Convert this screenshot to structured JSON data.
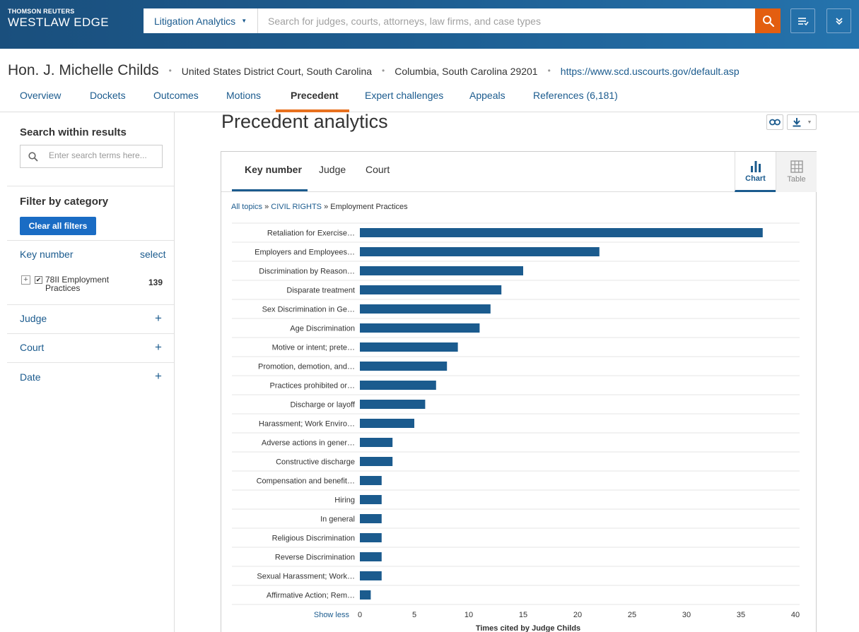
{
  "header": {
    "brand_top": "THOMSON REUTERS",
    "brand_main": "WESTLAW EDGE",
    "search_scope": "Litigation Analytics",
    "search_placeholder": "Search for judges, courts, attorneys, law firms, and case types",
    "icons": [
      "search-icon",
      "list-icon",
      "chevron-down-icon"
    ]
  },
  "judge": {
    "name": "Hon. J. Michelle Childs",
    "court": "United States District Court, South Carolina",
    "location": "Columbia, South Carolina 29201",
    "url": "https://www.scd.uscourts.gov/default.asp",
    "separator": "•"
  },
  "tabs": [
    {
      "label": "Overview"
    },
    {
      "label": "Dockets"
    },
    {
      "label": "Outcomes"
    },
    {
      "label": "Motions"
    },
    {
      "label": "Precedent",
      "active": true
    },
    {
      "label": "Expert challenges"
    },
    {
      "label": "Appeals"
    },
    {
      "label": "References (6,181)"
    }
  ],
  "sidebar": {
    "search_heading": "Search within results",
    "search_placeholder": "Enter search terms here...",
    "filter_heading": "Filter by category",
    "clear_label": "Clear all filters",
    "key_number_label": "Key number",
    "select_label": "select",
    "facet_item": {
      "label": "78II Employment Practices",
      "count": "139",
      "checked": true
    },
    "facets": [
      {
        "label": "Judge"
      },
      {
        "label": "Court"
      },
      {
        "label": "Date"
      }
    ]
  },
  "main": {
    "title": "Precedent analytics",
    "card_tabs": [
      {
        "label": "Key number",
        "active": true
      },
      {
        "label": "Judge"
      },
      {
        "label": "Court"
      }
    ],
    "view_toggles": [
      {
        "label": "Chart",
        "active": true
      },
      {
        "label": "Table"
      }
    ],
    "breadcrumb": {
      "all_topics": "All topics",
      "sep": "»",
      "civil_rights": "CIVIL RIGHTS",
      "current": "Employment Practices"
    },
    "show_less": "Show less"
  },
  "colors": {
    "accent": "#e35e10",
    "bar": "#1b5b8e",
    "link": "#1b5b8e",
    "tab_underline": "#e8711f"
  },
  "chart_data": {
    "type": "bar",
    "orientation": "horizontal",
    "categories": [
      "Retaliation for Exercise…",
      "Employers and Employees…",
      "Discrimination by Reason…",
      "Disparate treatment",
      "Sex Discrimination in Ge…",
      "Age Discrimination",
      "Motive or intent;  prete…",
      "Promotion, demotion, and…",
      "Practices prohibited or…",
      "Discharge or layoff",
      "Harassment;  Work Enviro…",
      "Adverse actions in gener…",
      "Constructive discharge",
      "Compensation and benefit…",
      "Hiring",
      "In general",
      "Religious Discrimination",
      "Reverse Discrimination",
      "Sexual Harassment;  Work…",
      "Affirmative Action;  Rem…"
    ],
    "values": [
      37,
      22,
      15,
      13,
      12,
      11,
      9,
      8,
      7,
      6,
      5,
      3,
      3,
      2,
      2,
      2,
      2,
      2,
      2,
      1
    ],
    "xlabel": "Times cited by Judge Childs",
    "ylabel": "",
    "xlim": [
      0,
      40
    ],
    "xticks": [
      0,
      5,
      10,
      15,
      20,
      25,
      30,
      35,
      40
    ],
    "grid": "horizontal"
  }
}
